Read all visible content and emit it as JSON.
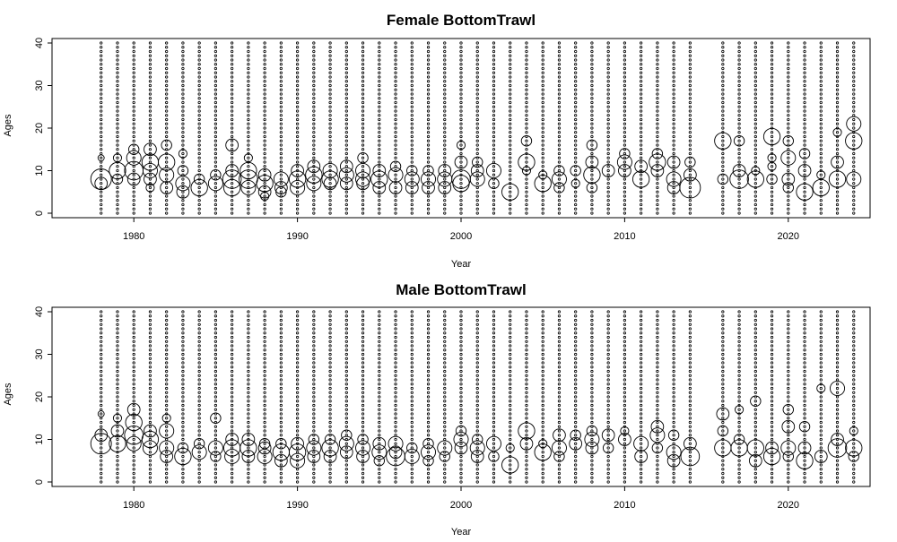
{
  "chart_data": [
    {
      "type": "scatter",
      "title": "Female BottomTrawl",
      "xlabel": "Year",
      "ylabel": "Ages",
      "xlim": [
        1975,
        2025
      ],
      "ylim": [
        0,
        40
      ],
      "xticks": [
        1980,
        1990,
        2000,
        2010,
        2020
      ],
      "yticks": [
        0,
        10,
        20,
        30,
        40
      ],
      "grid": false,
      "encoding": "bubble area proportional to proportion at age",
      "years": [
        1978,
        1979,
        1980,
        1981,
        1982,
        1983,
        1984,
        1985,
        1986,
        1987,
        1988,
        1989,
        1990,
        1991,
        1992,
        1993,
        1994,
        1995,
        1996,
        1997,
        1998,
        1999,
        2000,
        2001,
        2002,
        2003,
        2004,
        2005,
        2006,
        2007,
        2008,
        2009,
        2010,
        2011,
        2012,
        2013,
        2014,
        2016,
        2017,
        2018,
        2019,
        2020,
        2021,
        2022,
        2023,
        2024
      ],
      "missing_years": [
        2015
      ],
      "large_bubbles": [
        [
          1978,
          8,
          5
        ],
        [
          1978,
          7,
          3
        ],
        [
          1978,
          13,
          1.5
        ],
        [
          1979,
          10,
          4
        ],
        [
          1979,
          8,
          2.5
        ],
        [
          1979,
          13,
          2
        ],
        [
          1980,
          10,
          4.5
        ],
        [
          1980,
          13,
          3.5
        ],
        [
          1980,
          8,
          3
        ],
        [
          1980,
          15,
          2.5
        ],
        [
          1981,
          12,
          4
        ],
        [
          1981,
          10,
          3.5
        ],
        [
          1981,
          15,
          3
        ],
        [
          1981,
          8,
          3
        ],
        [
          1981,
          6,
          2
        ],
        [
          1982,
          12,
          4
        ],
        [
          1982,
          9,
          3.5
        ],
        [
          1982,
          6,
          3
        ],
        [
          1982,
          16,
          2.5
        ],
        [
          1983,
          7,
          3.5
        ],
        [
          1983,
          5,
          3
        ],
        [
          1983,
          10,
          2.5
        ],
        [
          1983,
          14,
          2
        ],
        [
          1984,
          6,
          4
        ],
        [
          1984,
          8,
          2.5
        ],
        [
          1985,
          7,
          3.5
        ],
        [
          1985,
          9,
          2.5
        ],
        [
          1986,
          8,
          4.5
        ],
        [
          1986,
          6,
          4
        ],
        [
          1986,
          10,
          3
        ],
        [
          1986,
          16,
          3
        ],
        [
          1987,
          8,
          4.5
        ],
        [
          1987,
          10,
          4
        ],
        [
          1987,
          6,
          3.5
        ],
        [
          1987,
          13,
          2
        ],
        [
          1988,
          7,
          4
        ],
        [
          1988,
          9,
          3
        ],
        [
          1988,
          5,
          3
        ],
        [
          1988,
          4,
          2
        ],
        [
          1989,
          8,
          3.5
        ],
        [
          1989,
          6,
          3
        ],
        [
          1989,
          5,
          2.5
        ],
        [
          1990,
          8,
          4
        ],
        [
          1990,
          6,
          3.5
        ],
        [
          1990,
          10,
          3
        ],
        [
          1991,
          9,
          4
        ],
        [
          1991,
          7,
          3.5
        ],
        [
          1991,
          11,
          3
        ],
        [
          1992,
          8,
          4
        ],
        [
          1992,
          10,
          3.5
        ],
        [
          1992,
          7,
          3
        ],
        [
          1993,
          9,
          3.5
        ],
        [
          1993,
          7,
          3
        ],
        [
          1993,
          11,
          3
        ],
        [
          1994,
          10,
          3.5
        ],
        [
          1994,
          8,
          3.5
        ],
        [
          1994,
          7,
          3
        ],
        [
          1994,
          13,
          2.5
        ],
        [
          1995,
          8,
          4
        ],
        [
          1995,
          6,
          3
        ],
        [
          1995,
          10,
          3
        ],
        [
          1996,
          9,
          3.5
        ],
        [
          1996,
          6,
          3
        ],
        [
          1996,
          11,
          2.5
        ],
        [
          1997,
          8,
          3.5
        ],
        [
          1997,
          6,
          3
        ],
        [
          1997,
          10,
          2.5
        ],
        [
          1998,
          8,
          3.5
        ],
        [
          1998,
          6,
          3
        ],
        [
          1998,
          10,
          2.5
        ],
        [
          1999,
          8,
          3.5
        ],
        [
          1999,
          10,
          3
        ],
        [
          1999,
          6,
          3
        ],
        [
          2000,
          8,
          4.5
        ],
        [
          2000,
          7,
          4
        ],
        [
          2000,
          12,
          3
        ],
        [
          2000,
          16,
          2
        ],
        [
          2001,
          8,
          3.5
        ],
        [
          2001,
          10,
          3
        ],
        [
          2001,
          12,
          2.5
        ],
        [
          2002,
          10,
          3.5
        ],
        [
          2002,
          7,
          2.5
        ],
        [
          2003,
          5,
          4
        ],
        [
          2004,
          12,
          4
        ],
        [
          2004,
          17,
          2.5
        ],
        [
          2004,
          10,
          2
        ],
        [
          2005,
          7,
          4
        ],
        [
          2005,
          9,
          2
        ],
        [
          2006,
          8,
          3.5
        ],
        [
          2006,
          10,
          2.5
        ],
        [
          2006,
          6,
          2.5
        ],
        [
          2007,
          10,
          2.5
        ],
        [
          2007,
          7,
          2
        ],
        [
          2008,
          9,
          4
        ],
        [
          2008,
          12,
          3
        ],
        [
          2008,
          16,
          2.5
        ],
        [
          2008,
          6,
          2.5
        ],
        [
          2009,
          10,
          3
        ],
        [
          2010,
          12,
          3.5
        ],
        [
          2010,
          10,
          3
        ],
        [
          2010,
          14,
          2.5
        ],
        [
          2011,
          8,
          4
        ],
        [
          2011,
          11,
          3
        ],
        [
          2012,
          12,
          4
        ],
        [
          2012,
          10,
          3
        ],
        [
          2012,
          14,
          2.5
        ],
        [
          2013,
          8,
          3.5
        ],
        [
          2013,
          12,
          3
        ],
        [
          2013,
          6,
          3
        ],
        [
          2014,
          6,
          5
        ],
        [
          2014,
          9,
          3
        ],
        [
          2014,
          12,
          2.5
        ],
        [
          2016,
          17,
          4
        ],
        [
          2016,
          8,
          2.5
        ],
        [
          2017,
          8,
          4.5
        ],
        [
          2017,
          10,
          3
        ],
        [
          2017,
          17,
          2.5
        ],
        [
          2018,
          8,
          4
        ],
        [
          2018,
          10,
          2
        ],
        [
          2019,
          18,
          4
        ],
        [
          2019,
          8,
          2.5
        ],
        [
          2019,
          11,
          2
        ],
        [
          2019,
          13,
          2
        ],
        [
          2020,
          13,
          3.5
        ],
        [
          2020,
          8,
          3
        ],
        [
          2020,
          17,
          2.5
        ],
        [
          2020,
          6,
          2.5
        ],
        [
          2021,
          5,
          4
        ],
        [
          2021,
          10,
          3
        ],
        [
          2021,
          14,
          2.5
        ],
        [
          2022,
          6,
          4
        ],
        [
          2022,
          9,
          2
        ],
        [
          2023,
          8,
          4
        ],
        [
          2023,
          12,
          3
        ],
        [
          2023,
          19,
          2
        ],
        [
          2024,
          17,
          4
        ],
        [
          2024,
          21,
          3.5
        ],
        [
          2024,
          8,
          3.5
        ]
      ]
    },
    {
      "type": "scatter",
      "title": "Male BottomTrawl",
      "xlabel": "Year",
      "ylabel": "Ages",
      "xlim": [
        1975,
        2025
      ],
      "ylim": [
        0,
        40
      ],
      "xticks": [
        1980,
        1990,
        2000,
        2010,
        2020
      ],
      "yticks": [
        0,
        10,
        20,
        30,
        40
      ],
      "grid": false,
      "encoding": "bubble area proportional to proportion at age",
      "years": [
        1978,
        1979,
        1980,
        1981,
        1982,
        1983,
        1984,
        1985,
        1986,
        1987,
        1988,
        1989,
        1990,
        1991,
        1992,
        1993,
        1994,
        1995,
        1996,
        1997,
        1998,
        1999,
        2000,
        2001,
        2002,
        2003,
        2004,
        2005,
        2006,
        2007,
        2008,
        2009,
        2010,
        2011,
        2012,
        2013,
        2014,
        2016,
        2017,
        2018,
        2019,
        2020,
        2021,
        2022,
        2023,
        2024
      ],
      "missing_years": [
        2015
      ],
      "large_bubbles": [
        [
          1978,
          9,
          5
        ],
        [
          1978,
          11,
          3
        ],
        [
          1978,
          16,
          1.5
        ],
        [
          1979,
          9,
          4
        ],
        [
          1979,
          12,
          3
        ],
        [
          1979,
          15,
          2
        ],
        [
          1980,
          11,
          4.5
        ],
        [
          1980,
          14,
          4
        ],
        [
          1980,
          9,
          3.5
        ],
        [
          1980,
          17,
          3
        ],
        [
          1981,
          10,
          4
        ],
        [
          1981,
          8,
          3.5
        ],
        [
          1981,
          12,
          3
        ],
        [
          1982,
          12,
          3.5
        ],
        [
          1982,
          8,
          3.5
        ],
        [
          1982,
          6,
          3
        ],
        [
          1982,
          15,
          2
        ],
        [
          1983,
          6,
          4
        ],
        [
          1983,
          8,
          2.5
        ],
        [
          1984,
          7,
          3.5
        ],
        [
          1984,
          9,
          2.5
        ],
        [
          1985,
          8,
          3.5
        ],
        [
          1985,
          15,
          2.5
        ],
        [
          1985,
          6,
          2.5
        ],
        [
          1986,
          8,
          4
        ],
        [
          1986,
          6,
          3.5
        ],
        [
          1986,
          10,
          3
        ],
        [
          1987,
          8,
          4
        ],
        [
          1987,
          10,
          3
        ],
        [
          1987,
          6,
          3
        ],
        [
          1988,
          6,
          3.5
        ],
        [
          1988,
          8,
          3
        ],
        [
          1988,
          9,
          2.5
        ],
        [
          1989,
          7,
          4
        ],
        [
          1989,
          5,
          3
        ],
        [
          1989,
          9,
          2.5
        ],
        [
          1990,
          7,
          4
        ],
        [
          1990,
          5,
          3.5
        ],
        [
          1990,
          9,
          3
        ],
        [
          1991,
          8,
          3.5
        ],
        [
          1991,
          6,
          3
        ],
        [
          1991,
          10,
          2.5
        ],
        [
          1992,
          8,
          4
        ],
        [
          1992,
          6,
          3
        ],
        [
          1992,
          10,
          2.5
        ],
        [
          1993,
          9,
          3.5
        ],
        [
          1993,
          7,
          3
        ],
        [
          1993,
          11,
          2.5
        ],
        [
          1994,
          8,
          3.5
        ],
        [
          1994,
          6,
          3
        ],
        [
          1994,
          10,
          2.5
        ],
        [
          1995,
          7,
          3.5
        ],
        [
          1995,
          9,
          3
        ],
        [
          1995,
          5,
          2.5
        ],
        [
          1996,
          6,
          4.5
        ],
        [
          1996,
          9,
          3.5
        ],
        [
          1996,
          7,
          3
        ],
        [
          1997,
          6,
          3.5
        ],
        [
          1997,
          8,
          2.5
        ],
        [
          1998,
          7,
          3.5
        ],
        [
          1998,
          9,
          2.5
        ],
        [
          1998,
          5,
          2.5
        ],
        [
          1999,
          8,
          3.5
        ],
        [
          1999,
          6,
          2.5
        ],
        [
          2000,
          10,
          3.5
        ],
        [
          2000,
          8,
          3
        ],
        [
          2000,
          12,
          2.5
        ],
        [
          2001,
          8,
          3.5
        ],
        [
          2001,
          6,
          3
        ],
        [
          2001,
          10,
          2.5
        ],
        [
          2002,
          9,
          3.5
        ],
        [
          2002,
          6,
          2.5
        ],
        [
          2003,
          4,
          4
        ],
        [
          2003,
          8,
          2
        ],
        [
          2004,
          12,
          4
        ],
        [
          2004,
          9,
          3
        ],
        [
          2005,
          7,
          4
        ],
        [
          2005,
          9,
          2
        ],
        [
          2006,
          8,
          3.5
        ],
        [
          2006,
          11,
          3
        ],
        [
          2006,
          6,
          2.5
        ],
        [
          2007,
          9,
          3
        ],
        [
          2007,
          11,
          2.5
        ],
        [
          2008,
          10,
          3.5
        ],
        [
          2008,
          8,
          3
        ],
        [
          2008,
          12,
          2.5
        ],
        [
          2009,
          11,
          3
        ],
        [
          2009,
          8,
          2.5
        ],
        [
          2010,
          10,
          3
        ],
        [
          2010,
          12,
          2
        ],
        [
          2011,
          9,
          3.5
        ],
        [
          2011,
          6,
          3
        ],
        [
          2012,
          11,
          3.5
        ],
        [
          2012,
          13,
          3
        ],
        [
          2012,
          8,
          2.5
        ],
        [
          2013,
          7,
          3.5
        ],
        [
          2013,
          5,
          3
        ],
        [
          2013,
          11,
          2.5
        ],
        [
          2014,
          6,
          4.5
        ],
        [
          2014,
          9,
          3
        ],
        [
          2016,
          8,
          4
        ],
        [
          2016,
          16,
          3
        ],
        [
          2016,
          12,
          2.5
        ],
        [
          2017,
          8,
          4
        ],
        [
          2017,
          10,
          2.5
        ],
        [
          2017,
          17,
          2
        ],
        [
          2018,
          8,
          4
        ],
        [
          2018,
          5,
          3
        ],
        [
          2018,
          19,
          2.5
        ],
        [
          2019,
          6,
          4
        ],
        [
          2019,
          8,
          3
        ],
        [
          2020,
          8,
          3.5
        ],
        [
          2020,
          13,
          3
        ],
        [
          2020,
          17,
          2.5
        ],
        [
          2020,
          6,
          2.5
        ],
        [
          2021,
          5,
          4
        ],
        [
          2021,
          8,
          3
        ],
        [
          2021,
          13,
          2.5
        ],
        [
          2022,
          6,
          3
        ],
        [
          2022,
          22,
          2
        ],
        [
          2023,
          8,
          4.5
        ],
        [
          2023,
          22,
          3.5
        ],
        [
          2023,
          10,
          3
        ],
        [
          2024,
          8,
          4
        ],
        [
          2024,
          6,
          2.5
        ],
        [
          2024,
          12,
          2
        ]
      ]
    }
  ]
}
